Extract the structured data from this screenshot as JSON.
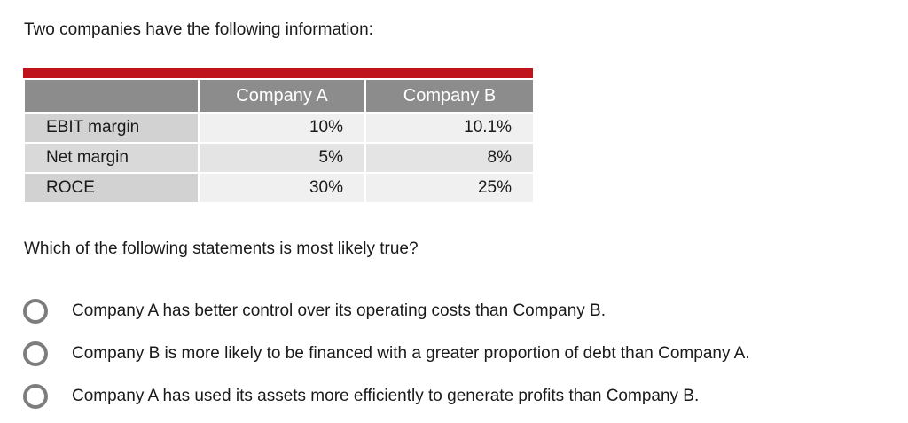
{
  "intro": "Two companies have the following information:",
  "table": {
    "headers": [
      "",
      "Company A",
      "Company B"
    ],
    "rows": [
      {
        "label": "EBIT margin",
        "a": "10%",
        "b": "10.1%"
      },
      {
        "label": "Net margin",
        "a": "5%",
        "b": "8%"
      },
      {
        "label": "ROCE",
        "a": "30%",
        "b": "25%"
      }
    ],
    "accent_color": "#c0141c",
    "header_color": "#8c8c8c"
  },
  "question": "Which of the following statements is most likely true?",
  "options": [
    {
      "text": "Company A has better control over its operating costs than Company B."
    },
    {
      "text": "Company B is more likely to be financed with a greater proportion of debt than Company A."
    },
    {
      "text": "Company A has used its assets more efficiently to generate profits than Company B."
    }
  ]
}
